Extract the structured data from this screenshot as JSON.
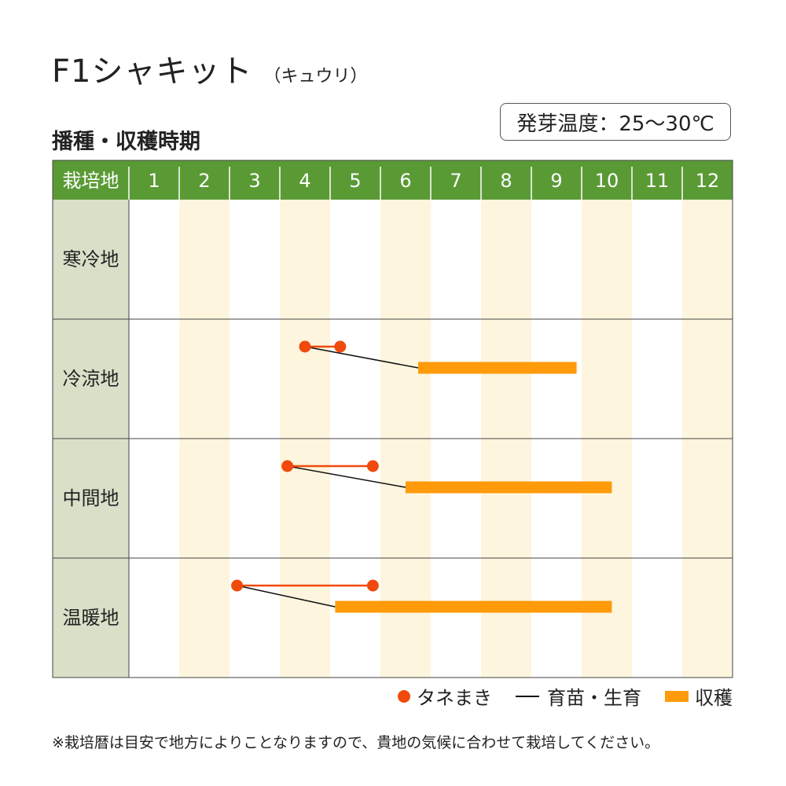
{
  "header": {
    "title": "F1シャキット",
    "title_sub": "（キュウリ）",
    "subtitle": "播種・収穫時期",
    "temperature": "発芽温度：25～30℃"
  },
  "colors": {
    "header_green": "#5a9a35",
    "region_col": "#d8e0c8",
    "stripe": "#fdf5dd",
    "sowing": "#f04a0c",
    "nursery": "#111111",
    "harvest": "#ff9a0a"
  },
  "chart_data": {
    "type": "gantt",
    "corner_label": "栽培地",
    "months": [
      "1",
      "2",
      "3",
      "4",
      "5",
      "6",
      "7",
      "8",
      "9",
      "10",
      "11",
      "12"
    ],
    "rows": [
      {
        "region": "寒冷地",
        "sowing": null,
        "harvest": null
      },
      {
        "region": "冷涼地",
        "sowing": [
          4.5,
          5.2
        ],
        "harvest": [
          6.75,
          9.9
        ]
      },
      {
        "region": "中間地",
        "sowing": [
          4.15,
          5.85
        ],
        "harvest": [
          6.5,
          10.6
        ]
      },
      {
        "region": "温暖地",
        "sowing": [
          3.15,
          5.85
        ],
        "harvest": [
          5.1,
          10.6
        ]
      }
    ]
  },
  "legend": {
    "sowing": "タネまき",
    "nursery": "育苗・生育",
    "harvest": "収穫"
  },
  "footnote": "※栽培暦は目安で地方によりことなりますので、貴地の気候に合わせて栽培してください。"
}
